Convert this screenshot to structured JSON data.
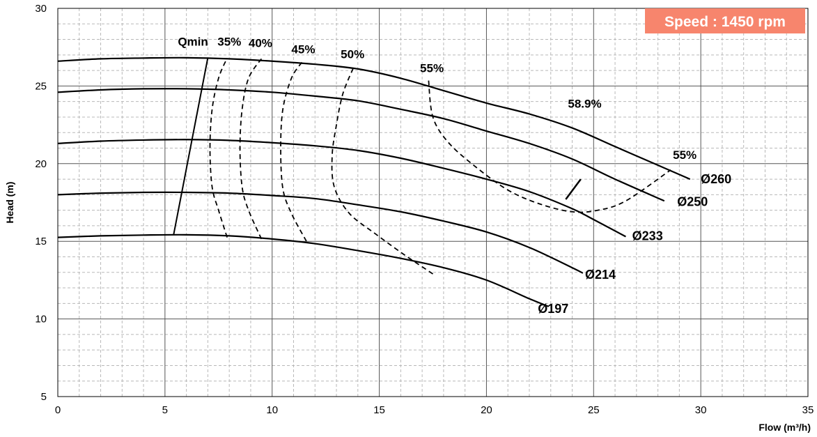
{
  "chart_data": {
    "type": "line",
    "title": "",
    "xlabel": "Flow (m³/h)",
    "ylabel": "Head (m)",
    "xlim": [
      0,
      35
    ],
    "ylim": [
      5,
      30
    ],
    "xticks": [
      0,
      5,
      10,
      15,
      20,
      25,
      30,
      35
    ],
    "yticks": [
      5,
      10,
      15,
      20,
      25,
      30
    ],
    "grid": true,
    "badge": {
      "text": "Speed : 1450 rpm",
      "color": "#F7856D"
    },
    "series": [
      {
        "name": "Ø260",
        "points": [
          [
            0,
            26.6
          ],
          [
            2,
            26.75
          ],
          [
            4,
            26.8
          ],
          [
            6,
            26.82
          ],
          [
            8,
            26.75
          ],
          [
            10,
            26.6
          ],
          [
            12,
            26.4
          ],
          [
            14,
            26.1
          ],
          [
            16,
            25.5
          ],
          [
            18,
            24.7
          ],
          [
            20,
            23.9
          ],
          [
            22,
            23.2
          ],
          [
            24,
            22.3
          ],
          [
            26,
            21.1
          ],
          [
            28,
            19.9
          ],
          [
            29.5,
            19.0
          ]
        ]
      },
      {
        "name": "Ø250",
        "points": [
          [
            0,
            24.6
          ],
          [
            2,
            24.75
          ],
          [
            4,
            24.82
          ],
          [
            6,
            24.82
          ],
          [
            8,
            24.75
          ],
          [
            10,
            24.6
          ],
          [
            12,
            24.35
          ],
          [
            14,
            24.05
          ],
          [
            16,
            23.5
          ],
          [
            18,
            22.9
          ],
          [
            20,
            22.1
          ],
          [
            22,
            21.3
          ],
          [
            24,
            20.3
          ],
          [
            26,
            19.0
          ],
          [
            28.3,
            17.6
          ]
        ]
      },
      {
        "name": "Ø233",
        "points": [
          [
            0,
            21.3
          ],
          [
            2,
            21.45
          ],
          [
            4,
            21.52
          ],
          [
            6,
            21.55
          ],
          [
            8,
            21.5
          ],
          [
            10,
            21.35
          ],
          [
            12,
            21.15
          ],
          [
            14,
            20.85
          ],
          [
            16,
            20.35
          ],
          [
            18,
            19.7
          ],
          [
            20,
            19.0
          ],
          [
            22,
            18.2
          ],
          [
            24,
            17.1
          ],
          [
            25,
            16.4
          ],
          [
            26.5,
            15.3
          ]
        ]
      },
      {
        "name": "Ø214",
        "points": [
          [
            0,
            18.0
          ],
          [
            2,
            18.1
          ],
          [
            4,
            18.15
          ],
          [
            6,
            18.15
          ],
          [
            8,
            18.1
          ],
          [
            10,
            17.95
          ],
          [
            12,
            17.75
          ],
          [
            14,
            17.35
          ],
          [
            16,
            16.9
          ],
          [
            18,
            16.3
          ],
          [
            20,
            15.6
          ],
          [
            22,
            14.6
          ],
          [
            24,
            13.3
          ],
          [
            24.5,
            12.95
          ]
        ]
      },
      {
        "name": "Ø197",
        "points": [
          [
            0,
            15.25
          ],
          [
            2,
            15.35
          ],
          [
            4,
            15.4
          ],
          [
            6,
            15.42
          ],
          [
            8,
            15.35
          ],
          [
            10,
            15.15
          ],
          [
            12,
            14.85
          ],
          [
            14,
            14.4
          ],
          [
            16,
            13.9
          ],
          [
            18,
            13.3
          ],
          [
            20,
            12.5
          ],
          [
            22,
            11.3
          ],
          [
            22.9,
            10.8
          ]
        ]
      }
    ],
    "curve_labels": [
      {
        "text": "Ø260",
        "x": 30.0,
        "y": 19.05
      },
      {
        "text": "Ø250",
        "x": 28.9,
        "y": 17.6
      },
      {
        "text": "Ø233",
        "x": 26.8,
        "y": 15.4
      },
      {
        "text": "Ø214",
        "x": 24.6,
        "y": 12.9
      },
      {
        "text": "Ø197",
        "x": 22.4,
        "y": 10.7
      }
    ],
    "qmin": {
      "label": "Qmin",
      "points": [
        [
          5.4,
          15.4
        ],
        [
          7.0,
          26.82
        ]
      ],
      "label_pos": [
        5.6,
        27.6
      ]
    },
    "efficiency_lines": [
      {
        "label": "35%",
        "points": [
          [
            7.9,
            15.25
          ],
          [
            7.5,
            17.0
          ],
          [
            7.2,
            18.5
          ],
          [
            7.1,
            21.0
          ],
          [
            7.2,
            23.5
          ],
          [
            7.5,
            25.5
          ],
          [
            7.9,
            26.8
          ]
        ],
        "label_pos": [
          7.45,
          27.6
        ]
      },
      {
        "label": "40%",
        "points": [
          [
            9.5,
            15.15
          ],
          [
            8.9,
            17.0
          ],
          [
            8.6,
            18.5
          ],
          [
            8.5,
            21.0
          ],
          [
            8.6,
            23.5
          ],
          [
            8.9,
            25.5
          ],
          [
            9.5,
            26.75
          ]
        ],
        "label_pos": [
          8.9,
          27.5
        ]
      },
      {
        "label": "45%",
        "points": [
          [
            11.6,
            15.0
          ],
          [
            10.9,
            16.8
          ],
          [
            10.5,
            18.4
          ],
          [
            10.4,
            21.0
          ],
          [
            10.5,
            23.5
          ],
          [
            10.9,
            25.5
          ],
          [
            11.4,
            26.55
          ]
        ],
        "label_pos": [
          10.9,
          27.1
        ]
      },
      {
        "label": "50%",
        "points": [
          [
            17.5,
            12.9
          ],
          [
            16.2,
            14.1
          ],
          [
            14.8,
            15.5
          ],
          [
            13.6,
            16.8
          ],
          [
            12.9,
            18.5
          ],
          [
            12.8,
            20.5
          ],
          [
            13.0,
            22.5
          ],
          [
            13.3,
            24.5
          ],
          [
            13.8,
            26.2
          ]
        ],
        "label_pos": [
          13.2,
          26.8
        ]
      },
      {
        "label": "55%",
        "points": [
          [
            17.3,
            25.35
          ],
          [
            17.5,
            23.0
          ],
          [
            18.2,
            21.4
          ],
          [
            19.4,
            19.9
          ],
          [
            21.0,
            18.3
          ],
          [
            22.5,
            17.4
          ],
          [
            24.0,
            16.9
          ],
          [
            25.2,
            17.0
          ],
          [
            26.5,
            17.6
          ],
          [
            28.6,
            19.6
          ]
        ],
        "label_pos": [
          16.9,
          25.9
        ]
      }
    ],
    "efficiency_labels_extra": [
      {
        "text": "55%",
        "x": 28.7,
        "y": 20.3
      }
    ],
    "bep": {
      "label": "58.9%",
      "points": [
        [
          23.7,
          17.7
        ],
        [
          24.4,
          19.0
        ]
      ],
      "label_pos": [
        23.8,
        23.6
      ]
    }
  }
}
